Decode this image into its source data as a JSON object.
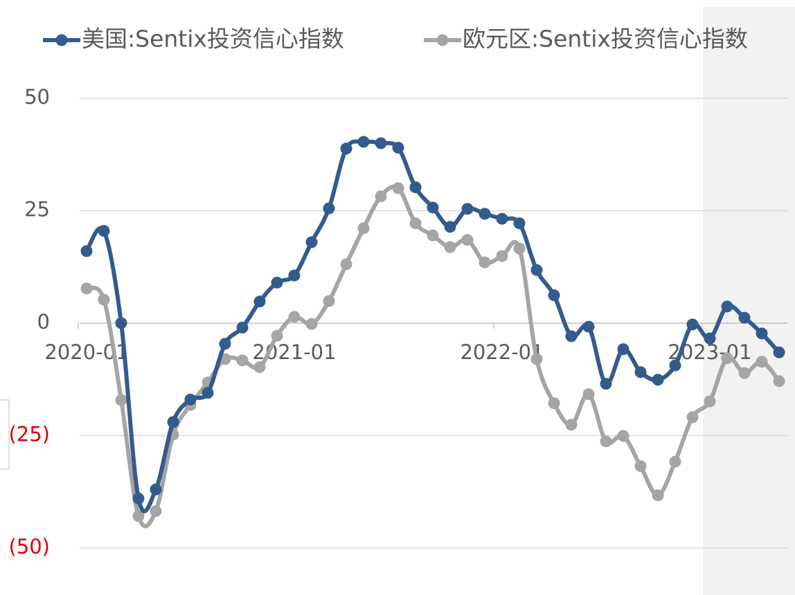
{
  "chart_data": {
    "type": "line",
    "categories": [
      "2020-01",
      null,
      null,
      null,
      null,
      null,
      null,
      null,
      null,
      null,
      null,
      null,
      "2021-01",
      null,
      null,
      null,
      null,
      null,
      null,
      null,
      null,
      null,
      null,
      null,
      "2022-01",
      null,
      null,
      null,
      null,
      null,
      null,
      null,
      null,
      null,
      null,
      null,
      "2023-01",
      null,
      null,
      null,
      null
    ],
    "series": [
      {
        "name": "美国:Sentix投资信心指数",
        "color": "#335b8e",
        "values": [
          16,
          20.5,
          0,
          -39,
          -37,
          -22,
          -17,
          -15.5,
          -4.6,
          -1,
          4.8,
          9,
          10.6,
          18,
          25.5,
          38.8,
          40.3,
          40,
          39,
          30.2,
          25.7,
          21.4,
          25.4,
          24.3,
          23.2,
          22.2,
          11.8,
          6.2,
          -2.9,
          -0.8,
          -13.5,
          -5.8,
          -10.9,
          -12.6,
          -9.4,
          -0.3,
          -3.4,
          3.7,
          1.2,
          -2.3,
          -6.5
        ]
      },
      {
        "name": "欧元区:Sentix投资信心指数",
        "color": "#a5a5a5",
        "values": [
          7.7,
          5.2,
          -17.1,
          -42.9,
          -41.8,
          -24.8,
          -18.2,
          -13.2,
          -8,
          -8.3,
          -9.8,
          -2.8,
          1.4,
          -0.2,
          4.9,
          13.1,
          21.1,
          28.2,
          30,
          22.2,
          19.5,
          16.9,
          18.5,
          13.5,
          14.9,
          16.6,
          -8,
          -17.8,
          -22.6,
          -15.8,
          -26.3,
          -25.1,
          -31.8,
          -38.3,
          -30.8,
          -20.9,
          -17.4,
          -7.8,
          -11.1,
          -8.6,
          -12.9
        ]
      }
    ],
    "ylim": [
      -55,
      53
    ],
    "yticks": [
      {
        "value": -50,
        "label": "(50)"
      },
      {
        "value": -25,
        "label": "(25)"
      },
      0,
      25,
      50
    ],
    "negative_tick_color": "#e00000",
    "grid": true,
    "legend": "top"
  }
}
